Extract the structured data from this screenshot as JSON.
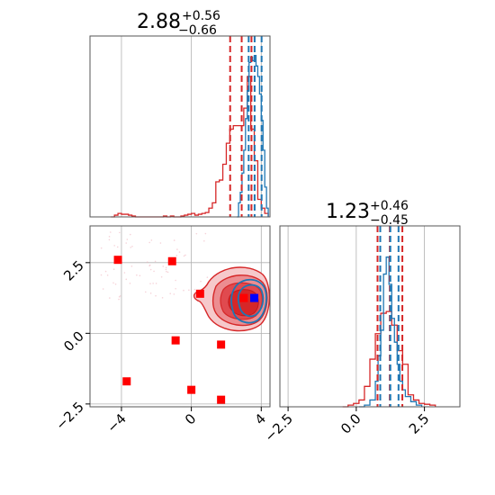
{
  "chart_data": [
    {
      "type": "histogram",
      "panel": "top-left",
      "title_main": "2.88",
      "title_sup": "+0.56",
      "title_sub": "−0.66",
      "xlim": [
        -5.8,
        4.5
      ],
      "ylim": [
        0,
        1.0
      ],
      "grid": true,
      "xticks": [
        -4,
        0,
        4
      ],
      "series": [
        {
          "color": "#d62728",
          "bins_x": [
            -4.6,
            -4.4,
            -4.2,
            -4.0,
            -3.8,
            -3.6,
            -3.4,
            -3.2,
            -3.0,
            -2.8,
            -2.6,
            -2.4,
            -2.2,
            -2.0,
            -1.8,
            -1.6,
            -1.4,
            -1.2,
            -1.0,
            -0.8,
            -0.6,
            -0.4,
            -0.2,
            0.0,
            0.2,
            0.4,
            0.6,
            0.8,
            1.0,
            1.2,
            1.4,
            1.6,
            1.8,
            2.0,
            2.2,
            2.4,
            2.6,
            2.8,
            3.0,
            3.2,
            3.4,
            3.6,
            3.8,
            4.0,
            4.2,
            4.4
          ],
          "heights": [
            0.0,
            0.01,
            0.02,
            0.015,
            0.015,
            0.01,
            0.005,
            0.0,
            0.0,
            0.0,
            0.0,
            0.0,
            0.0,
            0.0,
            0.0,
            0.005,
            0.0,
            0.005,
            0.0,
            0.0,
            0.005,
            0.01,
            0.015,
            0.02,
            0.01,
            0.015,
            0.02,
            0.025,
            0.05,
            0.08,
            0.2,
            0.21,
            0.3,
            0.42,
            0.5,
            0.52,
            0.52,
            0.52,
            0.62,
            0.8,
            0.5,
            0.32,
            0.1,
            0.05,
            0.02,
            0.0
          ],
          "quantiles": [
            2.22,
            2.88,
            3.44
          ]
        },
        {
          "color": "#1f77b4",
          "bins_x": [
            2.6,
            2.7,
            2.8,
            2.9,
            3.0,
            3.1,
            3.2,
            3.3,
            3.4,
            3.5,
            3.6,
            3.7,
            3.8,
            3.9,
            4.0,
            4.1,
            4.2,
            4.3,
            4.4
          ],
          "heights": [
            0.0,
            0.08,
            0.14,
            0.25,
            0.38,
            0.56,
            0.72,
            0.88,
            0.91,
            0.89,
            0.92,
            0.86,
            0.8,
            0.7,
            0.55,
            0.38,
            0.17,
            0.05,
            0.0
          ],
          "quantiles": [
            3.28,
            3.62,
            4.02
          ]
        }
      ]
    },
    {
      "type": "histogram",
      "panel": "bottom-right",
      "title_main": "1.23",
      "title_sup": "+0.46",
      "title_sub": "−0.45",
      "xlim": [
        -2.8,
        3.8
      ],
      "ylim": [
        0,
        1.0
      ],
      "grid": true,
      "xticks": [
        -2.5,
        0.0,
        2.5
      ],
      "xtick_labels": [
        "−2.5",
        "0.0",
        "2.5"
      ],
      "series": [
        {
          "color": "#d62728",
          "bins_x": [
            -0.5,
            -0.3,
            -0.1,
            0.1,
            0.3,
            0.5,
            0.7,
            0.9,
            1.1,
            1.3,
            1.5,
            1.7,
            1.9,
            2.1,
            2.3,
            2.5,
            2.7,
            2.9
          ],
          "heights": [
            0.0,
            0.01,
            0.02,
            0.04,
            0.12,
            0.28,
            0.43,
            0.55,
            0.56,
            0.48,
            0.33,
            0.25,
            0.07,
            0.04,
            0.02,
            0.015,
            0.01,
            0.0
          ],
          "quantiles": [
            0.78,
            1.23,
            1.69
          ]
        },
        {
          "color": "#1f77b4",
          "bins_x": [
            0.1,
            0.3,
            0.5,
            0.7,
            0.8,
            0.9,
            1.0,
            1.1,
            1.2,
            1.3,
            1.4,
            1.5,
            1.6,
            1.7,
            1.8,
            2.0,
            2.2,
            2.4
          ],
          "heights": [
            0.0,
            0.01,
            0.04,
            0.15,
            0.3,
            0.45,
            0.78,
            0.88,
            0.72,
            0.52,
            0.38,
            0.25,
            0.15,
            0.1,
            0.06,
            0.03,
            0.01,
            0.0
          ],
          "quantiles": [
            0.88,
            1.25,
            1.55
          ]
        }
      ]
    },
    {
      "type": "scatter",
      "panel": "bottom-left",
      "xlim": [
        -5.8,
        4.5
      ],
      "ylim": [
        -2.6,
        3.8
      ],
      "grid": true,
      "xticks": [
        -4,
        0,
        4
      ],
      "xtick_labels": [
        "−4",
        "0",
        "4"
      ],
      "yticks": [
        -2.5,
        0.0,
        2.5
      ],
      "ytick_labels": [
        "−2.5",
        "0.0",
        "2.5"
      ],
      "red_points": [
        {
          "x": -4.2,
          "y": 2.6
        },
        {
          "x": -1.1,
          "y": 2.55
        },
        {
          "x": 0.5,
          "y": 1.4
        },
        {
          "x": -0.9,
          "y": -0.25
        },
        {
          "x": 1.7,
          "y": -0.4
        },
        {
          "x": -3.7,
          "y": -1.7
        },
        {
          "x": 0.0,
          "y": -2.0
        },
        {
          "x": 1.7,
          "y": -2.35
        },
        {
          "x": 3.0,
          "y": 1.25
        }
      ],
      "blue_point": {
        "x": 3.6,
        "y": 1.25
      },
      "contour_color_red": "#d62728",
      "contour_color_blue": "#1f77b4"
    }
  ]
}
